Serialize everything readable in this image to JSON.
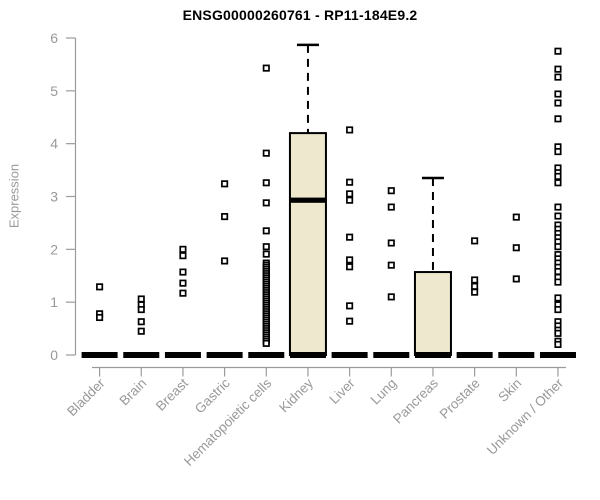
{
  "colors": {
    "box_fill": "#EDE8CE",
    "box_border": "#000000",
    "axis": "#9B9B9B",
    "text_muted": "#999999",
    "title": "#000000"
  },
  "chart_data": {
    "type": "boxplot",
    "title": "ENSG00000260761 - RP11-184E9.2",
    "ylabel": "Expression",
    "xlabel": "",
    "ylim": [
      0,
      6
    ],
    "yticks": [
      0,
      1,
      2,
      3,
      4,
      5,
      6
    ],
    "grid": false,
    "legend": "none",
    "categories": [
      "Bladder",
      "Brain",
      "Breast",
      "Gastric",
      "Hematopoietic cells",
      "Kidney",
      "Liver",
      "Lung",
      "Pancreas",
      "Prostate",
      "Skin",
      "Unknown / Other"
    ],
    "series": [
      {
        "label": "Bladder",
        "q1": 0,
        "median": 0,
        "q3": 0,
        "whisker_low": 0,
        "whisker_high": 0,
        "outliers": [
          1.29,
          0.78,
          0.71
        ]
      },
      {
        "label": "Brain",
        "q1": 0,
        "median": 0,
        "q3": 0,
        "whisker_low": 0,
        "whisker_high": 0,
        "outliers": [
          1.06,
          0.95,
          0.86,
          0.63,
          0.45
        ]
      },
      {
        "label": "Breast",
        "q1": 0,
        "median": 0,
        "q3": 0,
        "whisker_low": 0,
        "whisker_high": 0,
        "outliers": [
          2.0,
          1.88,
          1.57,
          1.36,
          1.17
        ]
      },
      {
        "label": "Gastric",
        "q1": 0,
        "median": 0,
        "q3": 0,
        "whisker_low": 0,
        "whisker_high": 0,
        "outliers": [
          3.24,
          2.62,
          1.78
        ]
      },
      {
        "label": "Hematopoietic cells",
        "q1": 0,
        "median": 0,
        "q3": 0,
        "whisker_low": 0,
        "whisker_high": 0,
        "outliers": [
          5.43,
          3.82,
          3.26,
          2.88,
          2.35,
          2.05,
          1.91,
          1.74,
          1.7,
          1.66,
          1.62,
          1.58,
          1.54,
          1.5,
          1.46,
          1.42,
          1.38,
          1.34,
          1.3,
          1.26,
          1.22,
          1.18,
          1.14,
          1.1,
          1.06,
          1.02,
          0.98,
          0.94,
          0.9,
          0.86,
          0.82,
          0.78,
          0.74,
          0.7,
          0.66,
          0.62,
          0.58,
          0.54,
          0.5,
          0.46,
          0.42,
          0.38,
          0.34,
          0.3,
          0.26,
          0.22
        ]
      },
      {
        "label": "Kidney",
        "q1": 0,
        "median": 2.93,
        "q3": 4.2,
        "whisker_low": 0,
        "whisker_high": 5.87,
        "outliers": []
      },
      {
        "label": "Liver",
        "q1": 0,
        "median": 0,
        "q3": 0,
        "whisker_low": 0,
        "whisker_high": 0,
        "outliers": [
          4.26,
          3.27,
          3.05,
          2.93,
          2.23,
          1.8,
          1.67,
          0.93,
          0.64
        ]
      },
      {
        "label": "Lung",
        "q1": 0,
        "median": 0,
        "q3": 0,
        "whisker_low": 0,
        "whisker_high": 0,
        "outliers": [
          3.11,
          2.8,
          2.12,
          1.7,
          1.1
        ]
      },
      {
        "label": "Pancreas",
        "q1": 0,
        "median": 0,
        "q3": 1.57,
        "whisker_low": 0,
        "whisker_high": 3.35,
        "outliers": []
      },
      {
        "label": "Prostate",
        "q1": 0,
        "median": 0,
        "q3": 0,
        "whisker_low": 0,
        "whisker_high": 0,
        "outliers": [
          2.16,
          1.42,
          1.3,
          1.19
        ]
      },
      {
        "label": "Skin",
        "q1": 0,
        "median": 0,
        "q3": 0,
        "whisker_low": 0,
        "whisker_high": 0,
        "outliers": [
          2.61,
          2.03,
          1.44
        ]
      },
      {
        "label": "Unknown / Other",
        "q1": 0,
        "median": 0,
        "q3": 0,
        "whisker_low": 0,
        "whisker_high": 0,
        "outliers": [
          5.75,
          5.41,
          5.26,
          4.94,
          4.77,
          4.47,
          3.94,
          3.85,
          3.54,
          3.45,
          3.38,
          3.26,
          2.8,
          2.63,
          2.46,
          2.38,
          2.3,
          2.22,
          2.14,
          2.05,
          1.9,
          1.82,
          1.74,
          1.66,
          1.58,
          1.47,
          1.38,
          1.08,
          0.95,
          0.86,
          0.63,
          0.55,
          0.47,
          0.41,
          0.26,
          0.2
        ]
      }
    ]
  }
}
